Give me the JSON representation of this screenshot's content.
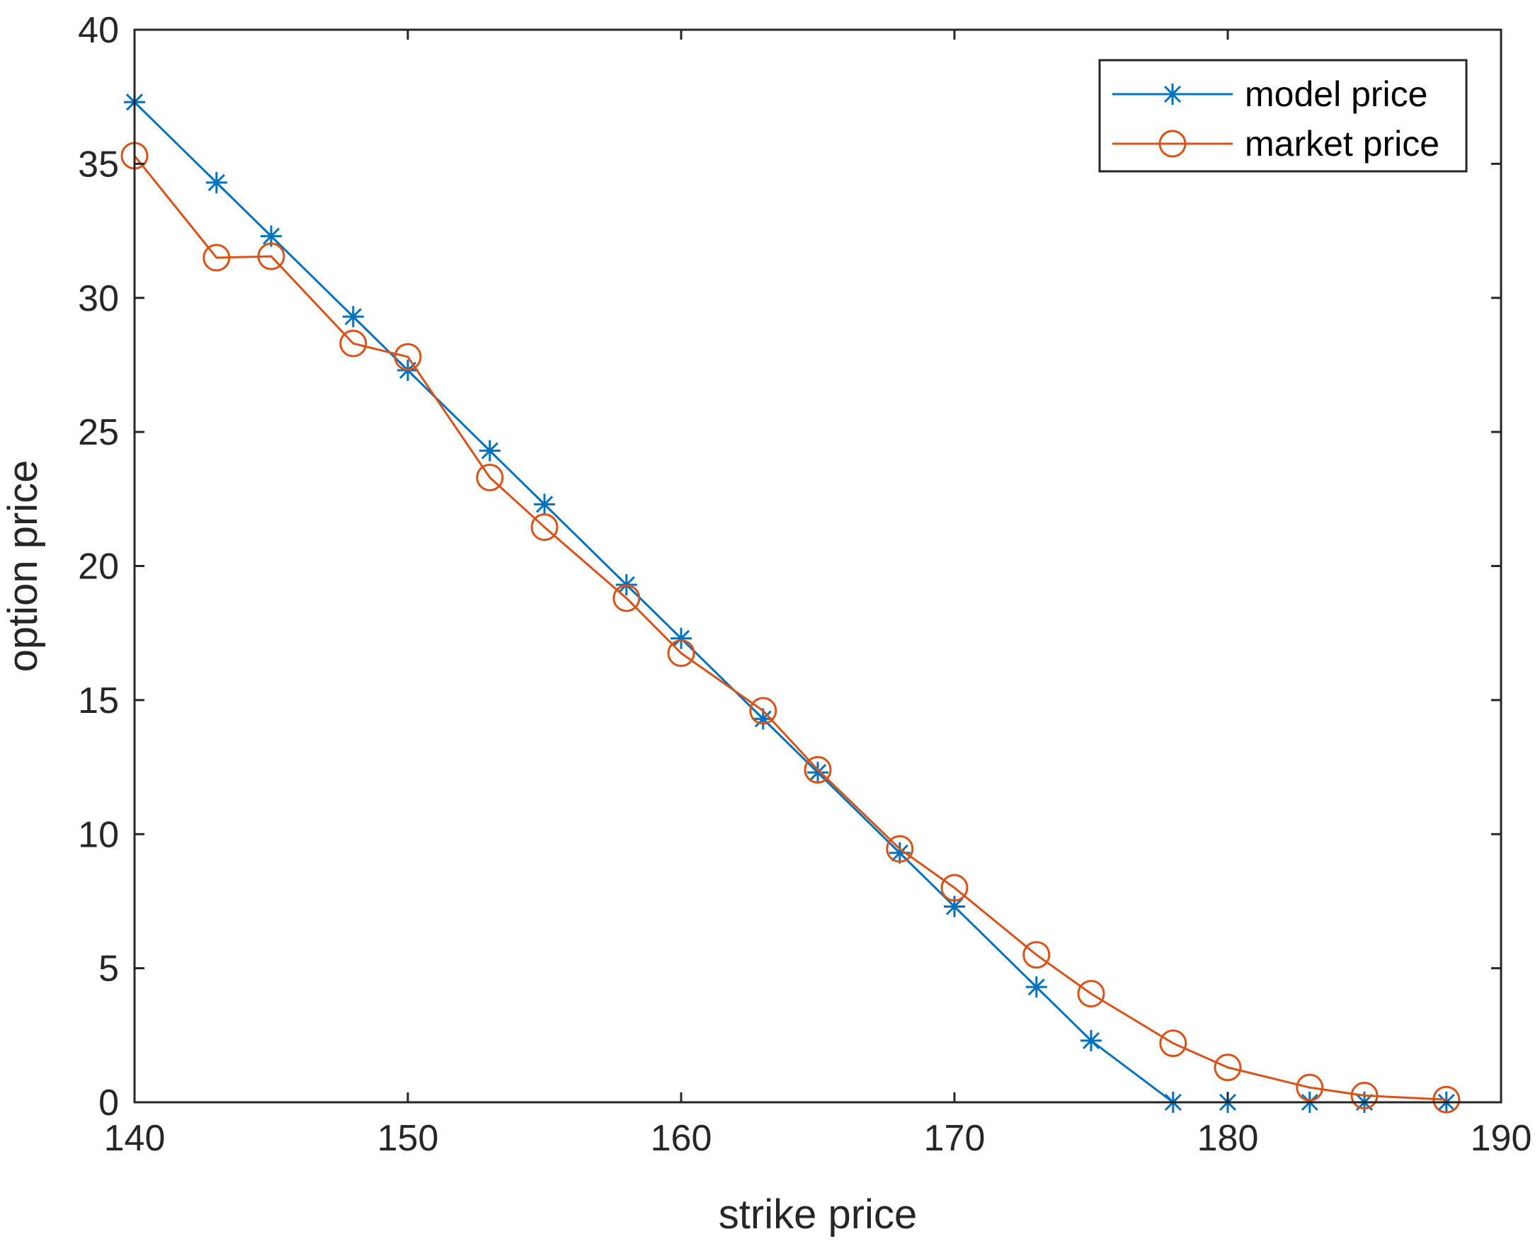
{
  "chart_data": {
    "type": "line",
    "title": "",
    "xlabel": "strike price",
    "ylabel": "option price",
    "xlim": [
      140,
      190
    ],
    "ylim": [
      0,
      40
    ],
    "xticks": [
      140,
      150,
      160,
      170,
      180,
      190
    ],
    "yticks": [
      0,
      5,
      10,
      15,
      20,
      25,
      30,
      35,
      40
    ],
    "grid": false,
    "legend_position": "top-right",
    "series": [
      {
        "name": "model price",
        "marker": "asterisk",
        "color": "#0072BD",
        "points": [
          [
            140,
            37.3
          ],
          [
            143,
            34.3
          ],
          [
            145,
            32.3
          ],
          [
            148,
            29.3
          ],
          [
            150,
            27.3
          ],
          [
            153,
            24.3
          ],
          [
            155,
            22.3
          ],
          [
            158,
            19.3
          ],
          [
            160,
            17.3
          ],
          [
            163,
            14.3
          ],
          [
            165,
            12.3
          ],
          [
            168,
            9.3
          ],
          [
            170,
            7.3
          ],
          [
            173,
            4.3
          ],
          [
            175,
            2.3
          ],
          [
            178,
            0.0
          ],
          [
            180,
            0.0
          ],
          [
            183,
            0.0
          ],
          [
            185,
            0.0
          ],
          [
            188,
            0.0
          ]
        ]
      },
      {
        "name": "market price",
        "marker": "circle",
        "color": "#D95319",
        "points": [
          [
            140,
            35.3
          ],
          [
            143,
            31.5
          ],
          [
            145,
            31.55
          ],
          [
            148,
            28.3
          ],
          [
            150,
            27.8
          ],
          [
            153,
            23.3
          ],
          [
            155,
            21.45
          ],
          [
            158,
            18.8
          ],
          [
            160,
            16.75
          ],
          [
            163,
            14.6
          ],
          [
            165,
            12.4
          ],
          [
            168,
            9.45
          ],
          [
            170,
            8.0
          ],
          [
            173,
            5.5
          ],
          [
            175,
            4.05
          ],
          [
            178,
            2.2
          ],
          [
            180,
            1.3
          ],
          [
            183,
            0.55
          ],
          [
            185,
            0.25
          ],
          [
            188,
            0.1
          ]
        ]
      }
    ]
  }
}
